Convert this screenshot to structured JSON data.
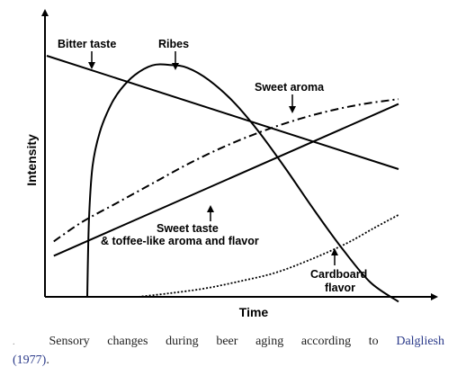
{
  "chart_data": {
    "type": "line",
    "xlabel": "Time",
    "ylabel": "Intensity",
    "xlim": [
      0,
      10
    ],
    "ylim": [
      0,
      10
    ],
    "grid": false,
    "legend": "none",
    "series": [
      {
        "name": "Bitter taste",
        "style": "solid",
        "x": [
          0,
          10
        ],
        "y": [
          10.0,
          5.3
        ]
      },
      {
        "name": "Ribes",
        "style": "solid",
        "x": [
          1.15,
          1.2,
          1.3,
          1.5,
          1.8,
          2.1,
          2.5,
          3.0,
          3.5,
          4.0,
          4.6,
          5.3,
          6.0,
          6.8,
          7.6,
          8.4,
          9.2,
          10.0
        ],
        "y": [
          0,
          3.2,
          5.4,
          6.8,
          7.9,
          8.6,
          9.2,
          9.6,
          9.62,
          9.5,
          9.0,
          8.1,
          6.9,
          5.3,
          3.6,
          2.0,
          0.6,
          -0.2
        ]
      },
      {
        "name": "Sweet aroma",
        "style": "dash-dot",
        "x": [
          0.2,
          1.0,
          2.0,
          3.0,
          4.0,
          5.0,
          6.0,
          7.0,
          8.0,
          9.0,
          10.0
        ],
        "y": [
          2.3,
          3.1,
          3.9,
          4.7,
          5.5,
          6.2,
          6.8,
          7.3,
          7.7,
          8.0,
          8.2
        ]
      },
      {
        "name": "Sweet taste & toffee-like aroma and flavor",
        "style": "solid",
        "x": [
          0.2,
          10
        ],
        "y": [
          1.7,
          8.0
        ]
      },
      {
        "name": "Cardboard flavor",
        "style": "dotted",
        "x": [
          2.6,
          3.5,
          4.5,
          5.5,
          6.5,
          7.5,
          8.5,
          9.3,
          10.0
        ],
        "y": [
          0,
          0.15,
          0.35,
          0.65,
          1.0,
          1.55,
          2.2,
          2.85,
          3.4
        ]
      }
    ],
    "annotations": [
      "Bitter taste",
      "Ribes",
      "Sweet aroma",
      "Sweet taste",
      "& toffee-like aroma and flavor",
      "Cardboard",
      "flavor"
    ]
  },
  "caption": {
    "marker": ".",
    "text": "Sensory changes during beer aging according to ",
    "citation_author": "Dalgliesh",
    "citation_year": "(1977)",
    "end": "."
  }
}
